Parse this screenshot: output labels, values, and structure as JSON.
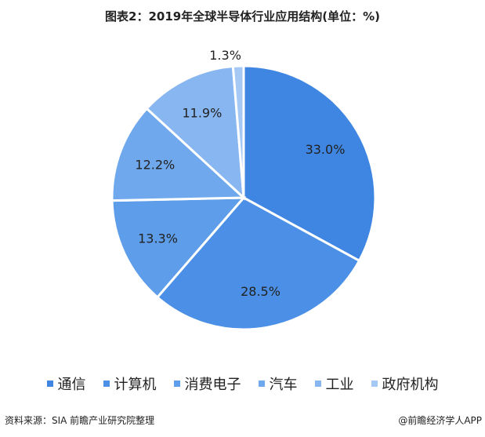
{
  "chart_data": {
    "type": "pie",
    "title": "图表2：2019年全球半导体行业应用结构(单位：%)",
    "categories": [
      "通信",
      "计算机",
      "消费电子",
      "汽车",
      "工业",
      "政府机构"
    ],
    "values": [
      33.0,
      28.5,
      13.3,
      12.2,
      11.9,
      1.3
    ],
    "labels": [
      "33.0%",
      "28.5%",
      "13.3%",
      "12.2%",
      "11.9%",
      "1.3%"
    ],
    "colors": [
      "#3f86e2",
      "#4b90e6",
      "#5e9de9",
      "#6fa8ec",
      "#88b6f0",
      "#a6c8f4"
    ],
    "start": "12 o'clock, clockwise",
    "legend": "bottom"
  },
  "footer": {
    "source": "资料来源：SIA 前瞻产业研究院整理",
    "credit": "@前瞻经济学人APP"
  }
}
